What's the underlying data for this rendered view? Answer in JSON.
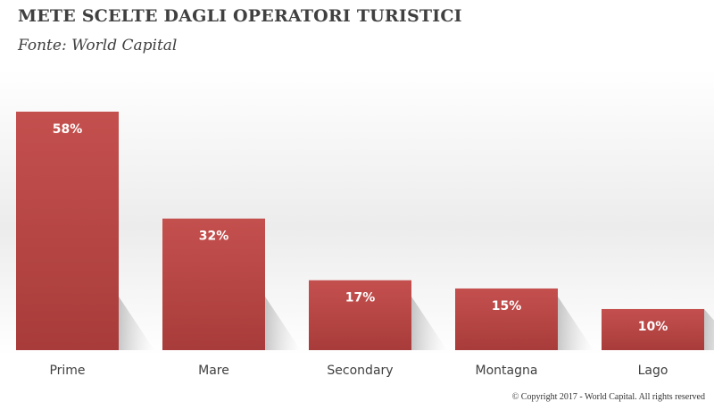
{
  "title": "METE SCELTE DAGLI OPERATORI TURISTICI",
  "subtitle": "Fonte: World Capital",
  "copyright": "© Copyright 2017 - World Capital. All rights reserved",
  "colors": {
    "bar": "#c0504d",
    "bar_dark": "#a53b39",
    "label": "#ffffff",
    "category": "#404040"
  },
  "chart_data": {
    "type": "bar",
    "categories": [
      "Prime",
      "Mare",
      "Secondary",
      "Montagna",
      "Lago"
    ],
    "values": [
      58,
      32,
      17,
      15,
      10
    ],
    "data_labels": [
      "58%",
      "32%",
      "17%",
      "15%",
      "10%"
    ],
    "title": "METE SCELTE DAGLI OPERATORI TURISTICI",
    "xlabel": "",
    "ylabel": "",
    "ylim": [
      0,
      60
    ],
    "grid": false,
    "legend": "none"
  }
}
